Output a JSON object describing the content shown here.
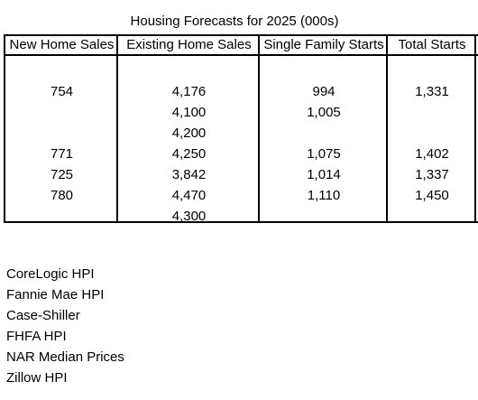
{
  "title": "Housing Forecasts for 2025 (000s)",
  "columns": [
    "New Home Sales",
    "Existing Home Sales",
    "Single Family Starts",
    "Total Starts"
  ],
  "rows": [
    [
      "754",
      "4,176",
      "994",
      "1,331"
    ],
    [
      "",
      "4,100",
      "1,005",
      ""
    ],
    [
      "",
      "4,200",
      "",
      ""
    ],
    [
      "771",
      "4,250",
      "1,075",
      "1,402"
    ],
    [
      "725",
      "3,842",
      "1,014",
      "1,337"
    ],
    [
      "780",
      "4,470",
      "1,110",
      "1,450"
    ],
    [
      "",
      "4,300",
      "",
      ""
    ]
  ],
  "notes": [
    "CoreLogic HPI",
    "Fannie Mae HPI",
    "Case-Shiller",
    "FHFA HPI",
    "NAR Median Prices",
    "Zillow HPI"
  ]
}
